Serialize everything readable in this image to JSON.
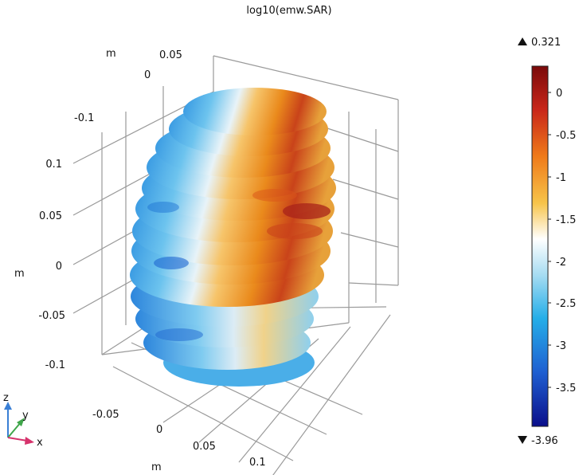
{
  "plot": {
    "title": "log10(emw.SAR)",
    "x_axis": {
      "unit": "m",
      "ticks": [
        "-0.05",
        "0",
        "0.05",
        "0.1"
      ]
    },
    "y_axis": {
      "unit": "m",
      "ticks": [
        "0.05",
        "0",
        "-0.1"
      ]
    },
    "z_axis": {
      "unit": "m",
      "ticks": [
        "0.1",
        "0.05",
        "0",
        "-0.05",
        "-0.1"
      ]
    }
  },
  "colorbar": {
    "max_label": "0.321",
    "min_label": "-3.96",
    "max_icon": "triangle-up-icon",
    "min_icon": "triangle-down-icon",
    "ticks": [
      "0",
      "-0.5",
      "-1",
      "-1.5",
      "-2",
      "-2.5",
      "-3",
      "-3.5"
    ],
    "colors": [
      "#7a0a0a",
      "#d9301a",
      "#f29419",
      "#f7d27a",
      "#ffffff",
      "#8fd3f0",
      "#25aee8",
      "#1f5fd1",
      "#0a0e8a"
    ]
  },
  "triad": {
    "z_label": "z",
    "y_label": "y",
    "x_label": "x",
    "z_color": "#3a7fd5",
    "y_color": "#3fa64a",
    "x_color": "#d6336c"
  }
}
